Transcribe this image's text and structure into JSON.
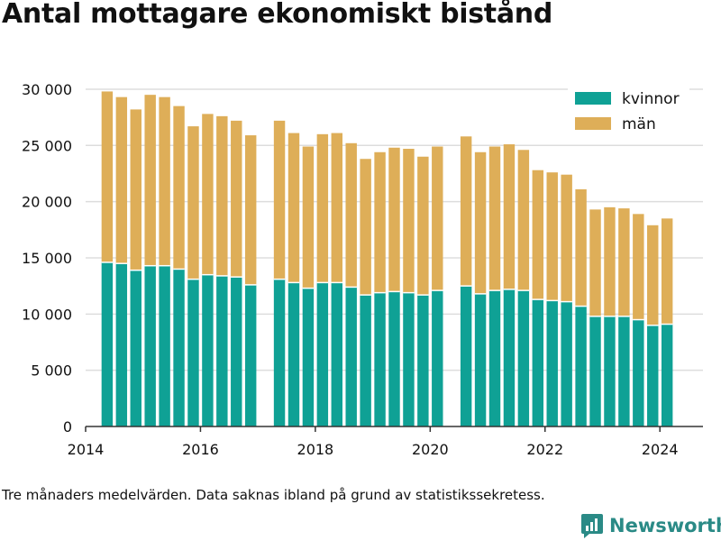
{
  "title": "Antal mottagare ekonomiskt bistånd",
  "note": "Tre månaders medelvärden. Data saknas ibland på grund av statistikssekretess.",
  "brand": {
    "name": "Newsworthy",
    "icon": "bar-chart-logo-icon",
    "color": "#2a8a86"
  },
  "colors": {
    "kvinnor": "#0fa195",
    "man": "#deae58",
    "grid": "#dddddd",
    "axis": "#333333"
  },
  "chart_data": {
    "type": "bar",
    "stacked": true,
    "title": "Antal mottagare ekonomiskt bistånd",
    "xlabel": "",
    "ylabel": "",
    "ylim": [
      0,
      32000
    ],
    "xlim": [
      2014.0,
      2024.75
    ],
    "y_ticks": [
      0,
      5000,
      10000,
      15000,
      20000,
      25000,
      30000
    ],
    "y_tick_labels": [
      "0",
      "5 000",
      "10 000",
      "15 000",
      "20 000",
      "25 000",
      "30 000"
    ],
    "x_ticks": [
      2014,
      2016,
      2018,
      2020,
      2022,
      2024
    ],
    "x_tick_labels": [
      "2014",
      "2016",
      "2018",
      "2020",
      "2022",
      "2024"
    ],
    "grid": true,
    "legend_position": "top-right",
    "x": [
      2014.375,
      2014.625,
      2014.875,
      2015.125,
      2015.375,
      2015.625,
      2015.875,
      2016.125,
      2016.375,
      2016.625,
      2016.875,
      2017.375,
      2017.625,
      2017.875,
      2018.125,
      2018.375,
      2018.625,
      2018.875,
      2019.125,
      2019.375,
      2019.625,
      2019.875,
      2020.125,
      2020.625,
      2020.875,
      2021.125,
      2021.375,
      2021.625,
      2021.875,
      2022.125,
      2022.375,
      2022.625,
      2022.875,
      2023.125,
      2023.375,
      2023.625,
      2023.875,
      2024.125
    ],
    "series": [
      {
        "name": "kvinnor",
        "color": "#0fa195",
        "values": [
          14600,
          14500,
          13900,
          14300,
          14300,
          14000,
          13100,
          13500,
          13400,
          13300,
          12600,
          13100,
          12800,
          12300,
          12800,
          12800,
          12400,
          11700,
          11900,
          12000,
          11900,
          11700,
          12100,
          12500,
          11800,
          12100,
          12200,
          12100,
          11300,
          11200,
          11100,
          10700,
          9800,
          9800,
          9800,
          9500,
          9000,
          9100
        ]
      },
      {
        "name": "män",
        "color": "#deae58",
        "values": [
          15200,
          14800,
          14300,
          15200,
          15000,
          14500,
          13600,
          14300,
          14200,
          13900,
          13300,
          14100,
          13300,
          12600,
          13200,
          13300,
          12800,
          12100,
          12500,
          12800,
          12800,
          12300,
          12800,
          13300,
          12600,
          12800,
          12900,
          12500,
          11500,
          11400,
          11300,
          10400,
          9500,
          9700,
          9600,
          9400,
          8900,
          9400
        ]
      }
    ]
  }
}
